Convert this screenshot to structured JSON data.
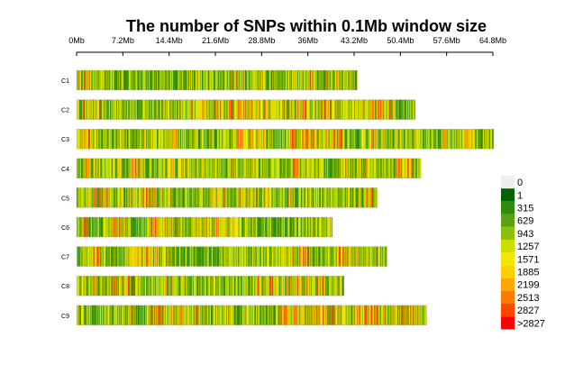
{
  "chart_data": {
    "type": "heatmap",
    "title": "The number of SNPs within 0.1Mb window size",
    "x_ticks": [
      "0Mb",
      "7.2Mb",
      "14.4Mb",
      "21.6Mb",
      "28.8Mb",
      "36Mb",
      "43.2Mb",
      "50.4Mb",
      "57.6Mb",
      "64.8Mb"
    ],
    "x_tick_values": [
      0,
      7.2,
      14.4,
      21.6,
      28.8,
      36,
      43.2,
      50.4,
      57.6,
      64.8
    ],
    "xlim": [
      0,
      64.8
    ],
    "window_size_mb": 0.1,
    "chromosomes": [
      {
        "name": "C1",
        "length_mb": 43.7
      },
      {
        "name": "C2",
        "length_mb": 52.7
      },
      {
        "name": "C3",
        "length_mb": 64.9
      },
      {
        "name": "C4",
        "length_mb": 53.6
      },
      {
        "name": "C5",
        "length_mb": 46.8
      },
      {
        "name": "C6",
        "length_mb": 39.8
      },
      {
        "name": "C7",
        "length_mb": 48.3
      },
      {
        "name": "C8",
        "length_mb": 41.6
      },
      {
        "name": "C9",
        "length_mb": 54.5
      }
    ],
    "legend": {
      "labels": [
        "0",
        "1",
        "315",
        "629",
        "943",
        "1257",
        "1571",
        "1885",
        "2199",
        "2513",
        "2827",
        ">2827"
      ],
      "colors": [
        "#eeeeee",
        "#006400",
        "#2e8b0e",
        "#5aa012",
        "#8cc00a",
        "#c8e000",
        "#f0e800",
        "#ffd000",
        "#ffa500",
        "#ff7a00",
        "#ff4500",
        "#ff0000"
      ]
    }
  }
}
